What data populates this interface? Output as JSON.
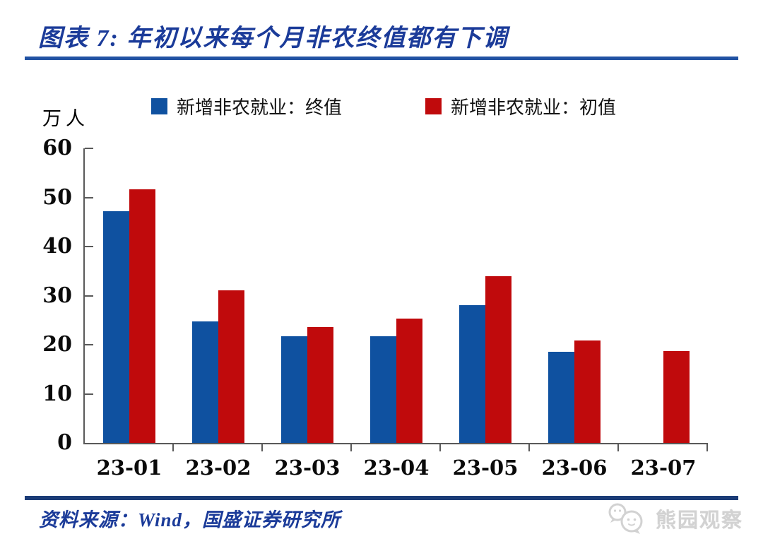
{
  "page": {
    "title": "图表 7:  年初以来每个月非农终值都有下调",
    "source_label": "资料来源：Wind，国盛证券研究所",
    "watermark_label": "熊园观察"
  },
  "colors": {
    "title_blue": "#1B3B99",
    "rule_top_blue": "#2152A3",
    "rule_bottom_navy": "#1B3C77",
    "axis_gray": "#595959",
    "watermark_gray": "#d2d2d2",
    "bar_final_blue": "#0F51A0",
    "bar_initial_red": "#C00A0C"
  },
  "chart_data": {
    "type": "bar",
    "title": "年初以来每个月非农终值都有下调",
    "unit_label": "万人",
    "ylabel": "万人",
    "xlabel": "",
    "categories": [
      "23-01",
      "23-02",
      "23-03",
      "23-04",
      "23-05",
      "23-06",
      "23-07"
    ],
    "series": [
      {
        "name": "新增非农就业：终值",
        "color": "#0F51A0",
        "values": [
          47.2,
          24.8,
          21.7,
          21.7,
          28.1,
          18.5,
          null
        ]
      },
      {
        "name": "新增非农就业：初值",
        "color": "#C00A0C",
        "values": [
          51.7,
          31.1,
          23.6,
          25.3,
          33.9,
          20.9,
          18.7
        ]
      }
    ],
    "ylim": [
      0,
      60
    ],
    "ytick_step": 10,
    "yticks": [
      0,
      10,
      20,
      30,
      40,
      50,
      60
    ],
    "legend_position": "top",
    "grid": false
  }
}
